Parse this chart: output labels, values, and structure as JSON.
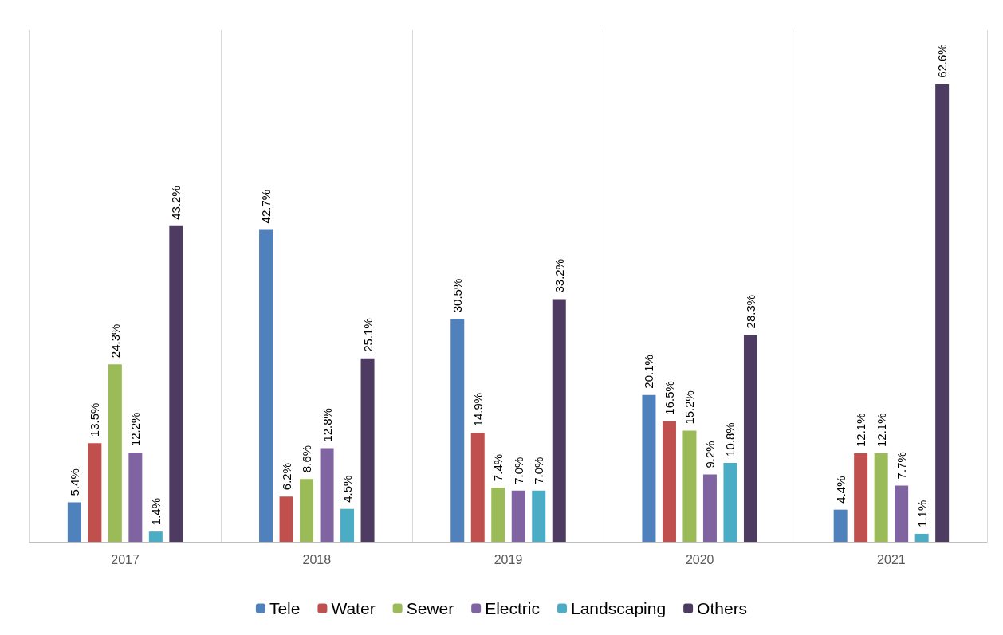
{
  "chart_data": {
    "type": "bar",
    "categories": [
      "2017",
      "2018",
      "2019",
      "2020",
      "2021"
    ],
    "series": [
      {
        "name": "Tele",
        "color": "#4f81bd",
        "values": [
          5.4,
          42.7,
          30.5,
          20.1,
          4.4
        ],
        "value_labels": [
          "5.4%",
          "42.7%",
          "30.5%",
          "20.1%",
          "4.4%"
        ]
      },
      {
        "name": "Water",
        "color": "#c0504d",
        "values": [
          13.5,
          6.2,
          14.9,
          16.5,
          12.1
        ],
        "value_labels": [
          "13.5%",
          "6.2%",
          "14.9%",
          "16.5%",
          "12.1%"
        ]
      },
      {
        "name": "Sewer",
        "color": "#9bbb59",
        "values": [
          24.3,
          8.6,
          7.4,
          15.2,
          12.1
        ],
        "value_labels": [
          "24.3%",
          "8.6%",
          "7.4%",
          "15.2%",
          "12.1%"
        ]
      },
      {
        "name": "Electric",
        "color": "#8064a2",
        "values": [
          12.2,
          12.8,
          7.0,
          9.2,
          7.7
        ],
        "value_labels": [
          "12.2%",
          "12.8%",
          "7.0%",
          "9.2%",
          "7.7%"
        ]
      },
      {
        "name": "Landscaping",
        "color": "#4bacc6",
        "values": [
          1.4,
          4.5,
          7.0,
          10.8,
          1.1
        ],
        "value_labels": [
          "1.4%",
          "4.5%",
          "7.0%",
          "10.8%",
          "1.1%"
        ]
      },
      {
        "name": "Others",
        "color": "#4e3b62",
        "values": [
          43.2,
          25.1,
          33.2,
          28.3,
          62.6
        ],
        "value_labels": [
          "43.2%",
          "25.1%",
          "33.2%",
          "28.3%",
          "62.6%"
        ]
      }
    ],
    "ylim": [
      0,
      70
    ],
    "tick_labels": "x",
    "grid": "x",
    "legend": "bottom"
  }
}
